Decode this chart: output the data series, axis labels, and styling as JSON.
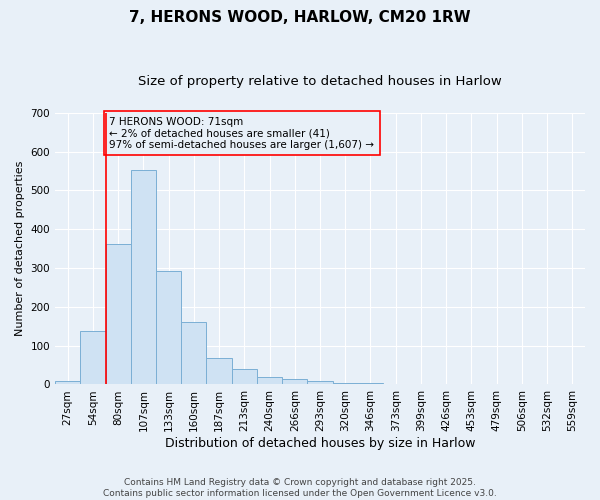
{
  "title": "7, HERONS WOOD, HARLOW, CM20 1RW",
  "subtitle": "Size of property relative to detached houses in Harlow",
  "xlabel": "Distribution of detached houses by size in Harlow",
  "ylabel": "Number of detached properties",
  "categories": [
    "27sqm",
    "54sqm",
    "80sqm",
    "107sqm",
    "133sqm",
    "160sqm",
    "187sqm",
    "213sqm",
    "240sqm",
    "266sqm",
    "293sqm",
    "320sqm",
    "346sqm",
    "373sqm",
    "399sqm",
    "426sqm",
    "453sqm",
    "479sqm",
    "506sqm",
    "532sqm",
    "559sqm"
  ],
  "values": [
    10,
    138,
    362,
    553,
    292,
    160,
    67,
    40,
    20,
    15,
    8,
    5,
    3,
    1,
    0,
    0,
    0,
    0,
    0,
    0,
    0
  ],
  "bar_color": "#cfe2f3",
  "bar_edge_color": "#7bafd4",
  "ylim": [
    0,
    700
  ],
  "yticks": [
    0,
    100,
    200,
    300,
    400,
    500,
    600,
    700
  ],
  "red_line_index": 2,
  "annotation_line1": "7 HERONS WOOD: 71sqm",
  "annotation_line2": "← 2% of detached houses are smaller (41)",
  "annotation_line3": "97% of semi-detached houses are larger (1,607) →",
  "footer_line1": "Contains HM Land Registry data © Crown copyright and database right 2025.",
  "footer_line2": "Contains public sector information licensed under the Open Government Licence v3.0.",
  "background_color": "#e8f0f8",
  "grid_color": "#ffffff",
  "title_fontsize": 11,
  "subtitle_fontsize": 9.5,
  "xlabel_fontsize": 9,
  "ylabel_fontsize": 8,
  "tick_fontsize": 7.5,
  "annotation_fontsize": 7.5,
  "footer_fontsize": 6.5
}
